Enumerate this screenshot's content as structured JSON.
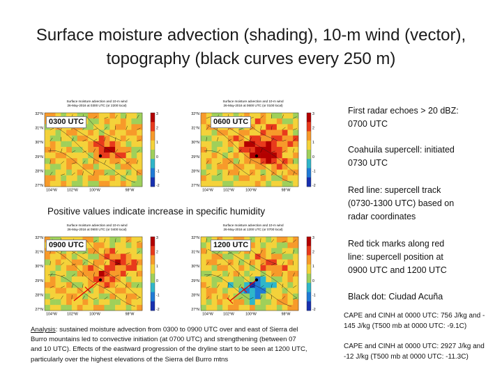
{
  "slide": {
    "title": "Surface moisture advection (shading), 10-m wind (vector), topography (black curves every 250 m)",
    "middle_note_a": "Positive values indicate ",
    "middle_note_b": "increase in specific humidity"
  },
  "panels": [
    {
      "time": "0300 UTC",
      "heading_1": "Surface moisture advection and 10-m wind",
      "heading_2": "26-May-2016 at 0300 UTC (or 2200 local)"
    },
    {
      "time": "0600 UTC",
      "heading_1": "Surface moisture advection and 10-m wind",
      "heading_2": "26-May-2016 at 0600 UTC (or 0100 local)"
    },
    {
      "time": "0900 UTC",
      "heading_1": "Surface moisture advection and 10-m wind",
      "heading_2": "26-May-2016 at 0900 UTC (or 0400 local)"
    },
    {
      "time": "1200 UTC",
      "heading_1": "Surface moisture advection and 10-m wind",
      "heading_2": "26-May-2016 at 1200 UTC (or 0700 local)"
    }
  ],
  "map_axes": {
    "lat_labels": [
      "32°N",
      "31°N",
      "30°N",
      "29°N",
      "28°N",
      "27°N"
    ],
    "lon_labels": [
      "104°W",
      "102°W",
      "100°W",
      "98°W"
    ],
    "colorbar_labels": [
      "3",
      "2",
      "1",
      "0",
      "-1",
      "-2"
    ]
  },
  "notes": {
    "n1_line1": "First radar echoes > 20 dBZ:",
    "n1_line2": "0700 UTC",
    "n2_line1": "Coahuila supercell: initiated",
    "n2_line2": "0730 UTC",
    "n3_line1": "Red line: supercell track",
    "n3_line2": "(0730-1300 UTC) based on",
    "n3_line3": "radar coordinates",
    "n4_line1": "Red tick marks along red",
    "n4_line2": "line: supercell position at",
    "n4_line3": "0900 UTC and 1200 UTC",
    "n5_line1": "Black dot: Ciudad Acuña",
    "n6_line1": "CAPE and CINH at 0000 UTC: 756 J/kg and -",
    "n6_line2": "145 J/kg (T500 mb at 0000 UTC: -9.1C)",
    "n7_line1": "CAPE and CINH at 0000 UTC: 2927 J/kg and",
    "n7_line2": "-12 J/kg (T500 mb at 0000 UTC: -11.3C)"
  },
  "analysis": {
    "label": "Analysis",
    "line1": ": sustained moisture advection from 0300 to 0900 UTC over and east of Sierra del",
    "line2": "Burro mountains led to convective initiation (at 0700 UTC) and strengthening (between 07",
    "line3": "and 10 UTC). Effects of the eastward progression of the dryline start to be seen at 1200 UTC,",
    "line4": "particularly over the highest elevations of the Sierra del Burro mtns"
  },
  "colors": {
    "strong_positive": "#b30000",
    "positive": "#e83a1c",
    "weak_positive": "#f79a2a",
    "neutral_yellow": "#f4d23a",
    "neutral_green": "#9fd05a",
    "weak_negative": "#2fb6c9",
    "negative": "#1f7ad6",
    "strong_negative": "#1730b0",
    "track": "#e00000"
  }
}
